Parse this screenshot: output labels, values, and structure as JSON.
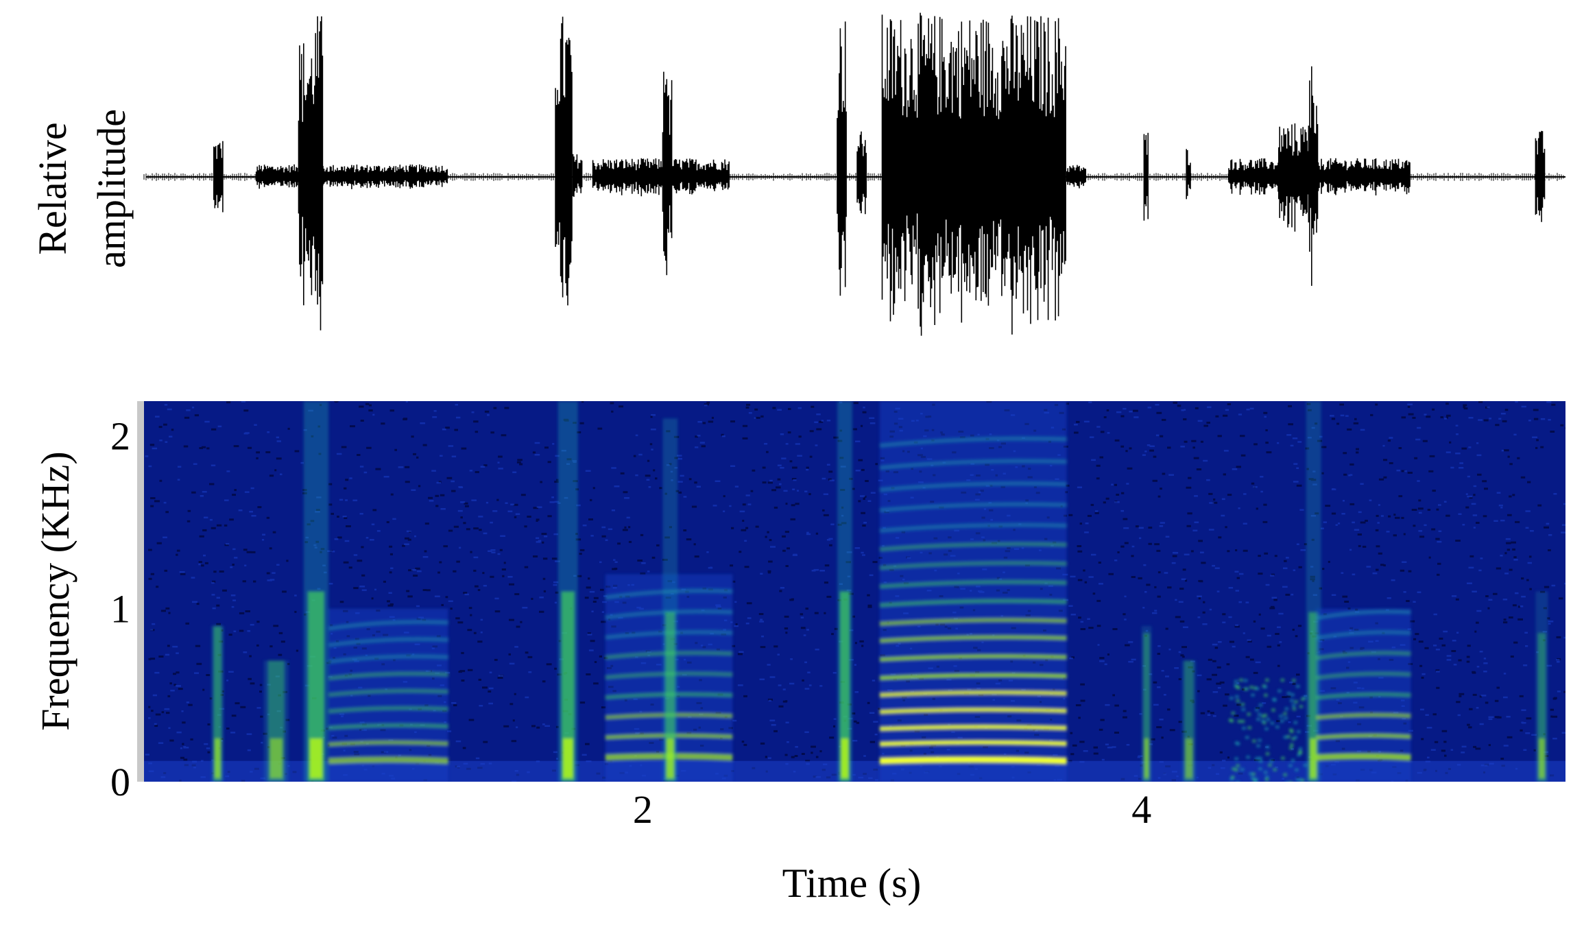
{
  "chart_data": [
    {
      "type": "line",
      "panel": "waveform",
      "ylabel_line1": "Relative",
      "ylabel_line2": "amplitude",
      "xlim": [
        0,
        5.7
      ],
      "ylim": [
        -1,
        1
      ],
      "grid": false,
      "baseline": 0,
      "segments": [
        {
          "start": 0.28,
          "end": 0.32,
          "amp": 0.25
        },
        {
          "start": 0.45,
          "end": 1.22,
          "amp": 0.08
        },
        {
          "start": 0.62,
          "end": 0.68,
          "amp": 0.9
        },
        {
          "start": 0.68,
          "end": 0.72,
          "amp": 1.0
        },
        {
          "start": 1.65,
          "end": 1.72,
          "amp": 1.0
        },
        {
          "start": 1.72,
          "end": 1.76,
          "amp": 0.15
        },
        {
          "start": 1.8,
          "end": 2.35,
          "amp": 0.12
        },
        {
          "start": 2.08,
          "end": 2.12,
          "amp": 0.75
        },
        {
          "start": 2.78,
          "end": 2.82,
          "amp": 1.0
        },
        {
          "start": 2.86,
          "end": 2.9,
          "amp": 0.3
        },
        {
          "start": 2.96,
          "end": 3.7,
          "amp": 1.0
        },
        {
          "start": 3.7,
          "end": 3.78,
          "amp": 0.08
        },
        {
          "start": 4.01,
          "end": 4.03,
          "amp": 0.3
        },
        {
          "start": 4.18,
          "end": 4.2,
          "amp": 0.2
        },
        {
          "start": 4.35,
          "end": 5.08,
          "amp": 0.12
        },
        {
          "start": 4.55,
          "end": 4.68,
          "amp": 0.35
        },
        {
          "start": 4.67,
          "end": 4.71,
          "amp": 0.75
        },
        {
          "start": 5.58,
          "end": 5.62,
          "amp": 0.3
        }
      ]
    },
    {
      "type": "heatmap",
      "panel": "spectrogram",
      "ylabel": "Frequency (KHz)",
      "xlabel": "Time (s)",
      "xlim": [
        0,
        5.7
      ],
      "ylim": [
        0,
        2.2
      ],
      "xticks": [
        "2",
        "4"
      ],
      "xtick_values": [
        2,
        4
      ],
      "yticks": [
        "0",
        "1",
        "2"
      ],
      "ytick_values": [
        0,
        1,
        2
      ],
      "colormap": [
        "#000020",
        "#08128a",
        "#1b40c8",
        "#1aa0b0",
        "#40d060",
        "#a8f020",
        "#f0ff30"
      ],
      "calls": [
        {
          "start": 0.64,
          "end": 0.74,
          "peak": 1.0,
          "harmonics": [
            0.12,
            0.2,
            0.28,
            0.36,
            0.44,
            0.52,
            0.6,
            0.7,
            0.8
          ],
          "max_freq": 2.2,
          "type": "click"
        },
        {
          "start": 0.74,
          "end": 1.22,
          "peak": 0.65,
          "harmonics": [
            0.12,
            0.22,
            0.32,
            0.42,
            0.52,
            0.62,
            0.72,
            0.82,
            0.92
          ],
          "max_freq": 1.0,
          "type": "tonal"
        },
        {
          "start": 0.27,
          "end": 0.32,
          "peak": 0.7,
          "harmonics": [],
          "max_freq": 0.9,
          "type": "click"
        },
        {
          "start": 0.48,
          "end": 0.58,
          "peak": 0.6,
          "harmonics": [],
          "max_freq": 0.7,
          "type": "click"
        },
        {
          "start": 1.66,
          "end": 1.74,
          "peak": 1.0,
          "harmonics": [],
          "max_freq": 2.2,
          "type": "click"
        },
        {
          "start": 1.85,
          "end": 2.36,
          "peak": 0.7,
          "harmonics": [
            0.14,
            0.26,
            0.38,
            0.5,
            0.62,
            0.74,
            0.86,
            0.98,
            1.1
          ],
          "max_freq": 1.2,
          "type": "tonal"
        },
        {
          "start": 2.08,
          "end": 2.14,
          "peak": 0.8,
          "harmonics": [],
          "max_freq": 2.1,
          "type": "click"
        },
        {
          "start": 2.78,
          "end": 2.84,
          "peak": 1.0,
          "harmonics": [],
          "max_freq": 2.2,
          "type": "click"
        },
        {
          "start": 2.95,
          "end": 3.7,
          "peak": 1.0,
          "harmonics": [
            0.12,
            0.22,
            0.31,
            0.41,
            0.51,
            0.61,
            0.72,
            0.83,
            0.93,
            1.04,
            1.15,
            1.26,
            1.37,
            1.48,
            1.6,
            1.72,
            1.85,
            1.98
          ],
          "max_freq": 2.2,
          "type": "tonal"
        },
        {
          "start": 4.0,
          "end": 4.04,
          "peak": 0.6,
          "harmonics": [],
          "max_freq": 0.9,
          "type": "click"
        },
        {
          "start": 4.16,
          "end": 4.22,
          "peak": 0.5,
          "harmonics": [],
          "max_freq": 0.7,
          "type": "click"
        },
        {
          "start": 4.35,
          "end": 4.65,
          "peak": 0.5,
          "harmonics": [],
          "max_freq": 0.6,
          "type": "noise"
        },
        {
          "start": 4.66,
          "end": 4.72,
          "peak": 0.8,
          "harmonics": [],
          "max_freq": 2.2,
          "type": "click"
        },
        {
          "start": 4.7,
          "end": 5.08,
          "peak": 0.75,
          "harmonics": [
            0.14,
            0.26,
            0.38,
            0.5,
            0.62,
            0.74,
            0.86,
            0.98
          ],
          "max_freq": 1.0,
          "type": "tonal"
        },
        {
          "start": 5.58,
          "end": 5.63,
          "peak": 0.6,
          "harmonics": [],
          "max_freq": 1.1,
          "type": "click"
        }
      ]
    }
  ]
}
